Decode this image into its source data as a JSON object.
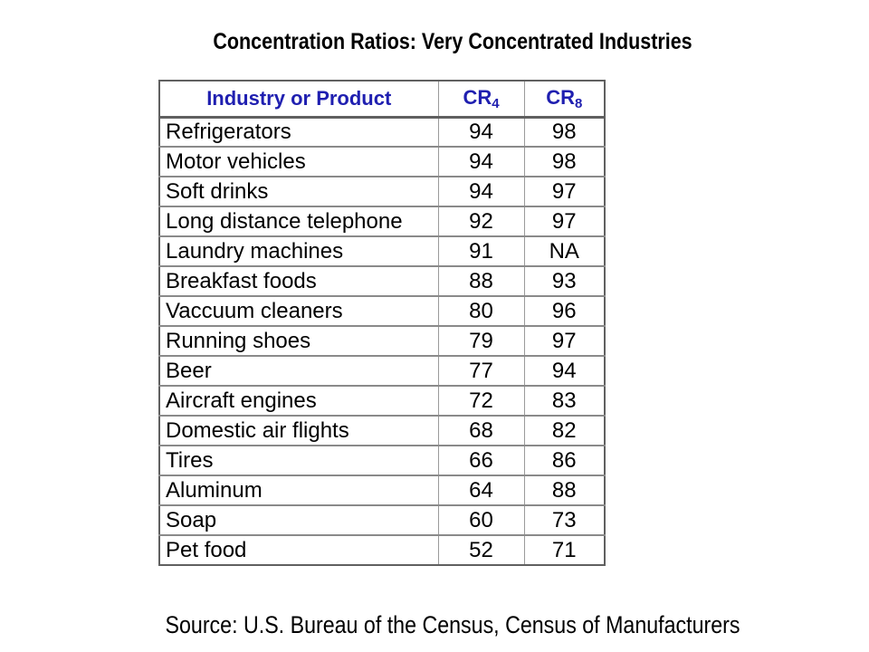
{
  "title": "Concentration Ratios: Very Concentrated Industries",
  "source": "Source: U.S. Bureau of the Census, Census of Manufacturers",
  "table": {
    "headers": {
      "industry": "Industry or Product",
      "cr4": {
        "base": "CR",
        "sub": "4"
      },
      "cr8": {
        "base": "CR",
        "sub": "8"
      }
    },
    "rows": [
      {
        "industry": "Refrigerators",
        "cr4": "94",
        "cr8": "98"
      },
      {
        "industry": "Motor vehicles",
        "cr4": "94",
        "cr8": "98"
      },
      {
        "industry": "Soft drinks",
        "cr4": "94",
        "cr8": "97"
      },
      {
        "industry": "Long distance telephone",
        "cr4": "92",
        "cr8": "97"
      },
      {
        "industry": "Laundry machines",
        "cr4": "91",
        "cr8": "NA"
      },
      {
        "industry": "Breakfast foods",
        "cr4": "88",
        "cr8": "93"
      },
      {
        "industry": "Vaccuum cleaners",
        "cr4": "80",
        "cr8": "96"
      },
      {
        "industry": "Running shoes",
        "cr4": "79",
        "cr8": "97"
      },
      {
        "industry": "Beer",
        "cr4": "77",
        "cr8": "94"
      },
      {
        "industry": "Aircraft engines",
        "cr4": "72",
        "cr8": "83"
      },
      {
        "industry": "Domestic air flights",
        "cr4": "68",
        "cr8": "82"
      },
      {
        "industry": "Tires",
        "cr4": "66",
        "cr8": "86"
      },
      {
        "industry": "Aluminum",
        "cr4": "64",
        "cr8": "88"
      },
      {
        "industry": "Soap",
        "cr4": "60",
        "cr8": "73"
      },
      {
        "industry": "Pet food",
        "cr4": "52",
        "cr8": "71"
      }
    ]
  },
  "colors": {
    "header_text": "#1f1fb0",
    "body_text": "#000000",
    "border": "#9a9a9a"
  }
}
